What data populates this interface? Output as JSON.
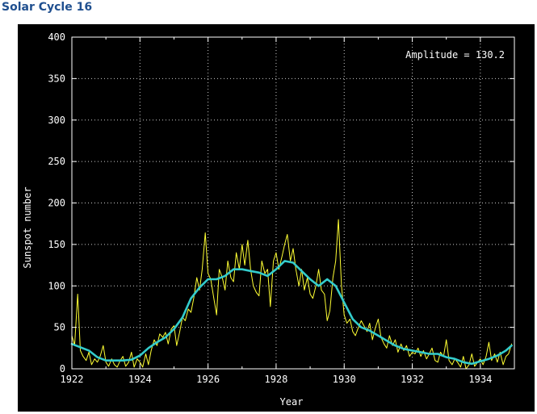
{
  "page": {
    "title": "Solar Cycle 16"
  },
  "colors": {
    "background": "#000000",
    "axes": "#ffffff",
    "grid": "#cccccc",
    "monthly": "#ffff33",
    "smoothed": "#33cccc",
    "title": "#1f4f8f"
  },
  "chart_data": {
    "type": "line",
    "title": "Solar Cycle 16",
    "xlabel": "Year",
    "ylabel": "Sunspot number",
    "xlim": [
      1922,
      1935
    ],
    "ylim": [
      0,
      400
    ],
    "xticks": [
      1922,
      1924,
      1926,
      1928,
      1930,
      1932,
      1934
    ],
    "yticks": [
      0,
      50,
      100,
      150,
      200,
      250,
      300,
      350,
      400
    ],
    "grid": true,
    "annotation": "Amplitude = 130.2",
    "annotation_position": "top-right",
    "series": [
      {
        "role": "monthly",
        "color": "#ffff33",
        "points": [
          [
            1922.0,
            40
          ],
          [
            1922.08,
            28
          ],
          [
            1922.17,
            90
          ],
          [
            1922.25,
            22
          ],
          [
            1922.33,
            15
          ],
          [
            1922.42,
            10
          ],
          [
            1922.5,
            20
          ],
          [
            1922.58,
            5
          ],
          [
            1922.67,
            12
          ],
          [
            1922.75,
            8
          ],
          [
            1922.83,
            15
          ],
          [
            1922.92,
            28
          ],
          [
            1923.0,
            8
          ],
          [
            1923.08,
            3
          ],
          [
            1923.17,
            12
          ],
          [
            1923.25,
            5
          ],
          [
            1923.33,
            2
          ],
          [
            1923.42,
            10
          ],
          [
            1923.5,
            15
          ],
          [
            1923.58,
            3
          ],
          [
            1923.67,
            8
          ],
          [
            1923.75,
            20
          ],
          [
            1923.83,
            2
          ],
          [
            1923.92,
            12
          ],
          [
            1924.0,
            8
          ],
          [
            1924.08,
            2
          ],
          [
            1924.17,
            18
          ],
          [
            1924.25,
            5
          ],
          [
            1924.33,
            22
          ],
          [
            1924.42,
            35
          ],
          [
            1924.5,
            28
          ],
          [
            1924.58,
            42
          ],
          [
            1924.67,
            38
          ],
          [
            1924.75,
            44
          ],
          [
            1924.83,
            30
          ],
          [
            1924.92,
            48
          ],
          [
            1925.0,
            52
          ],
          [
            1925.08,
            28
          ],
          [
            1925.17,
            45
          ],
          [
            1925.25,
            62
          ],
          [
            1925.33,
            58
          ],
          [
            1925.42,
            72
          ],
          [
            1925.5,
            68
          ],
          [
            1925.58,
            85
          ],
          [
            1925.67,
            110
          ],
          [
            1925.75,
            95
          ],
          [
            1925.83,
            120
          ],
          [
            1925.92,
            164
          ],
          [
            1926.0,
            115
          ],
          [
            1926.08,
            108
          ],
          [
            1926.17,
            85
          ],
          [
            1926.25,
            65
          ],
          [
            1926.33,
            120
          ],
          [
            1926.42,
            110
          ],
          [
            1926.5,
            95
          ],
          [
            1926.58,
            130
          ],
          [
            1926.67,
            110
          ],
          [
            1926.75,
            105
          ],
          [
            1926.83,
            140
          ],
          [
            1926.92,
            120
          ],
          [
            1927.0,
            150
          ],
          [
            1927.08,
            125
          ],
          [
            1927.17,
            155
          ],
          [
            1927.25,
            120
          ],
          [
            1927.33,
            100
          ],
          [
            1927.42,
            92
          ],
          [
            1927.5,
            88
          ],
          [
            1927.58,
            130
          ],
          [
            1927.67,
            115
          ],
          [
            1927.75,
            120
          ],
          [
            1927.83,
            75
          ],
          [
            1927.92,
            130
          ],
          [
            1928.0,
            140
          ],
          [
            1928.08,
            120
          ],
          [
            1928.17,
            135
          ],
          [
            1928.25,
            150
          ],
          [
            1928.33,
            162
          ],
          [
            1928.42,
            130
          ],
          [
            1928.5,
            145
          ],
          [
            1928.58,
            120
          ],
          [
            1928.67,
            100
          ],
          [
            1928.75,
            120
          ],
          [
            1928.83,
            95
          ],
          [
            1928.92,
            110
          ],
          [
            1929.0,
            90
          ],
          [
            1929.08,
            85
          ],
          [
            1929.17,
            100
          ],
          [
            1929.25,
            120
          ],
          [
            1929.33,
            95
          ],
          [
            1929.42,
            90
          ],
          [
            1929.5,
            58
          ],
          [
            1929.58,
            70
          ],
          [
            1929.67,
            110
          ],
          [
            1929.75,
            130
          ],
          [
            1929.83,
            180
          ],
          [
            1929.92,
            100
          ],
          [
            1930.0,
            65
          ],
          [
            1930.08,
            55
          ],
          [
            1930.17,
            60
          ],
          [
            1930.25,
            45
          ],
          [
            1930.33,
            40
          ],
          [
            1930.42,
            50
          ],
          [
            1930.5,
            58
          ],
          [
            1930.58,
            52
          ],
          [
            1930.67,
            45
          ],
          [
            1930.75,
            55
          ],
          [
            1930.83,
            35
          ],
          [
            1930.92,
            50
          ],
          [
            1931.0,
            60
          ],
          [
            1931.08,
            38
          ],
          [
            1931.17,
            30
          ],
          [
            1931.25,
            25
          ],
          [
            1931.33,
            40
          ],
          [
            1931.42,
            28
          ],
          [
            1931.5,
            35
          ],
          [
            1931.58,
            20
          ],
          [
            1931.67,
            30
          ],
          [
            1931.75,
            22
          ],
          [
            1931.83,
            28
          ],
          [
            1931.92,
            15
          ],
          [
            1932.0,
            20
          ],
          [
            1932.08,
            18
          ],
          [
            1932.17,
            25
          ],
          [
            1932.25,
            15
          ],
          [
            1932.33,
            22
          ],
          [
            1932.42,
            12
          ],
          [
            1932.5,
            18
          ],
          [
            1932.58,
            25
          ],
          [
            1932.67,
            10
          ],
          [
            1932.75,
            8
          ],
          [
            1932.83,
            20
          ],
          [
            1932.92,
            15
          ],
          [
            1933.0,
            35
          ],
          [
            1933.08,
            10
          ],
          [
            1933.17,
            5
          ],
          [
            1933.25,
            12
          ],
          [
            1933.33,
            8
          ],
          [
            1933.42,
            2
          ],
          [
            1933.5,
            15
          ],
          [
            1933.58,
            0
          ],
          [
            1933.67,
            5
          ],
          [
            1933.75,
            18
          ],
          [
            1933.83,
            3
          ],
          [
            1933.92,
            8
          ],
          [
            1934.0,
            12
          ],
          [
            1934.08,
            5
          ],
          [
            1934.17,
            15
          ],
          [
            1934.25,
            32
          ],
          [
            1934.33,
            10
          ],
          [
            1934.42,
            18
          ],
          [
            1934.5,
            8
          ],
          [
            1934.58,
            20
          ],
          [
            1934.67,
            5
          ],
          [
            1934.75,
            15
          ],
          [
            1934.83,
            18
          ],
          [
            1934.92,
            30
          ]
        ]
      },
      {
        "role": "smoothed",
        "color": "#33cccc",
        "points": [
          [
            1922.0,
            30
          ],
          [
            1922.25,
            26
          ],
          [
            1922.5,
            22
          ],
          [
            1922.75,
            14
          ],
          [
            1923.0,
            10
          ],
          [
            1923.25,
            10
          ],
          [
            1923.5,
            10
          ],
          [
            1923.75,
            11
          ],
          [
            1924.0,
            16
          ],
          [
            1924.25,
            25
          ],
          [
            1924.5,
            32
          ],
          [
            1924.75,
            38
          ],
          [
            1925.0,
            48
          ],
          [
            1925.25,
            62
          ],
          [
            1925.5,
            85
          ],
          [
            1925.75,
            98
          ],
          [
            1926.0,
            108
          ],
          [
            1926.25,
            108
          ],
          [
            1926.5,
            112
          ],
          [
            1926.75,
            120
          ],
          [
            1927.0,
            120
          ],
          [
            1927.25,
            118
          ],
          [
            1927.5,
            116
          ],
          [
            1927.75,
            112
          ],
          [
            1928.0,
            120
          ],
          [
            1928.25,
            130
          ],
          [
            1928.5,
            128
          ],
          [
            1928.75,
            118
          ],
          [
            1929.0,
            108
          ],
          [
            1929.25,
            100
          ],
          [
            1929.5,
            108
          ],
          [
            1929.75,
            100
          ],
          [
            1930.0,
            80
          ],
          [
            1930.25,
            60
          ],
          [
            1930.5,
            50
          ],
          [
            1930.75,
            46
          ],
          [
            1931.0,
            40
          ],
          [
            1931.25,
            34
          ],
          [
            1931.5,
            28
          ],
          [
            1931.75,
            24
          ],
          [
            1932.0,
            22
          ],
          [
            1932.25,
            20
          ],
          [
            1932.5,
            18
          ],
          [
            1932.75,
            18
          ],
          [
            1933.0,
            14
          ],
          [
            1933.25,
            12
          ],
          [
            1933.5,
            8
          ],
          [
            1933.75,
            6
          ],
          [
            1934.0,
            9
          ],
          [
            1934.25,
            12
          ],
          [
            1934.5,
            16
          ],
          [
            1934.75,
            22
          ],
          [
            1934.92,
            28
          ]
        ]
      }
    ]
  }
}
